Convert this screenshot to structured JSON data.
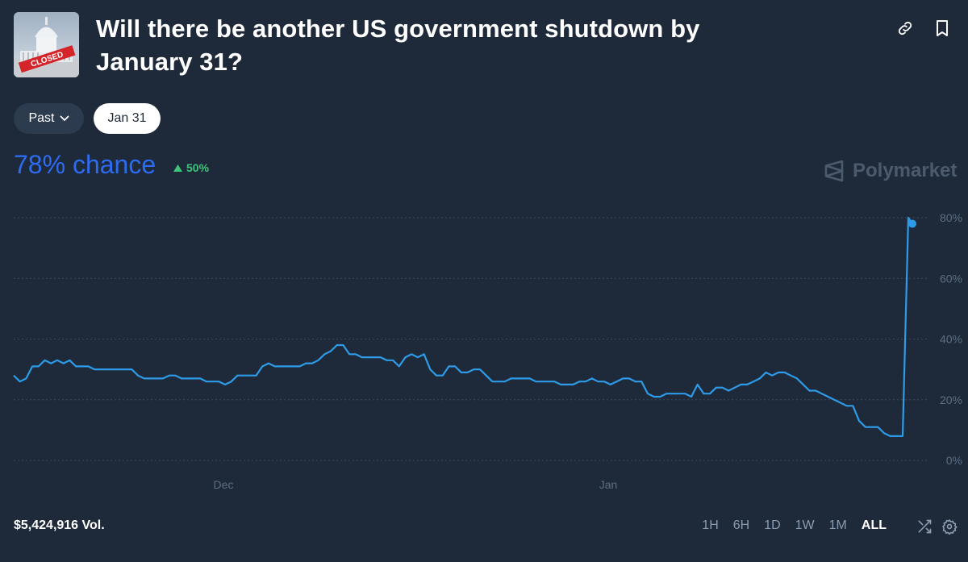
{
  "header": {
    "title": "Will there be another US government shutdown by January 31?",
    "thumbnail_badge": "CLOSED",
    "icons": [
      "link-icon",
      "bookmark-icon"
    ]
  },
  "filters": {
    "past_label": "Past",
    "date_label": "Jan 31"
  },
  "summary": {
    "chance_text": "78% chance",
    "delta_text": "50%",
    "delta_direction": "up",
    "brand": "Polymarket"
  },
  "colors": {
    "background": "#1e2a3a",
    "chance": "#2d6bf0",
    "delta": "#3ec47a",
    "line": "#2e9be8"
  },
  "chart_data": {
    "type": "line",
    "x_tick_labels": [
      "Dec",
      "Jan"
    ],
    "y_tick_labels": [
      "80%",
      "60%",
      "40%",
      "20%",
      "0%"
    ],
    "ylim": [
      0,
      80
    ],
    "grid": true,
    "series": [
      {
        "values": [
          28,
          26,
          27,
          31,
          31,
          33,
          32,
          33,
          32,
          33,
          31,
          31,
          31,
          30,
          30,
          30,
          30,
          30,
          30,
          30,
          28,
          27,
          27,
          27,
          27,
          28,
          28,
          27,
          27,
          27,
          27,
          26,
          26,
          26,
          25,
          26,
          28,
          28,
          28,
          28,
          31,
          32,
          31,
          31,
          31,
          31,
          31,
          32,
          32,
          33,
          35,
          36,
          38,
          38,
          35,
          35,
          34,
          34,
          34,
          34,
          33,
          33,
          31,
          34,
          35,
          34,
          35,
          30,
          28,
          28,
          31,
          31,
          29,
          29,
          30,
          30,
          28,
          26,
          26,
          26,
          27,
          27,
          27,
          27,
          26,
          26,
          26,
          26,
          25,
          25,
          25,
          26,
          26,
          27,
          26,
          26,
          25,
          26,
          27,
          27,
          26,
          26,
          22,
          21,
          21,
          22,
          22,
          22,
          22,
          21,
          25,
          22,
          22,
          24,
          24,
          23,
          24,
          25,
          25,
          26,
          27,
          29,
          28,
          29,
          29,
          28,
          27,
          25,
          23,
          23,
          22,
          21,
          20,
          19,
          18,
          18,
          13,
          11,
          11,
          11,
          9,
          8,
          8,
          8,
          80,
          78
        ]
      }
    ]
  },
  "footer": {
    "volume": "$5,424,916 Vol.",
    "ranges": [
      "1H",
      "6H",
      "1D",
      "1W",
      "1M",
      "ALL"
    ],
    "active_range": "ALL",
    "icons": [
      "shuffle-icon",
      "settings-icon"
    ]
  }
}
